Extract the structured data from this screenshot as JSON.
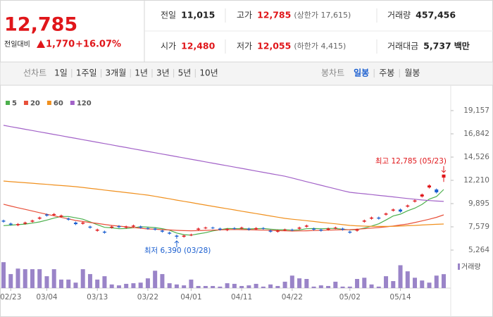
{
  "quote": {
    "price": "12,785",
    "change_label": "전일대비",
    "change": "1,770",
    "rate": "+16.07%"
  },
  "summary": [
    {
      "label": "전일",
      "value": "11,015"
    },
    {
      "label": "고가",
      "value": "12,785",
      "note": "(상한가 17,615)"
    },
    {
      "label": "거래량",
      "value": "457,456"
    },
    {
      "label": "시가",
      "value": "12,480"
    },
    {
      "label": "저가",
      "value": "12,055",
      "note": "(하한가 4,415)"
    },
    {
      "label": "거래대금",
      "value": "5,737",
      "unit": "백만"
    }
  ],
  "line_tabs": {
    "label": "선차트",
    "items": [
      "1일",
      "1주일",
      "3개월",
      "1년",
      "3년",
      "5년",
      "10년"
    ]
  },
  "candle_tabs": {
    "label": "봉차트",
    "items": [
      "일봉",
      "주봉",
      "월봉"
    ],
    "selected": 0
  },
  "chart_data": {
    "type": "candlestick",
    "categories": [
      null,
      "02/23",
      null,
      null,
      null,
      null,
      "03/04",
      null,
      null,
      null,
      null,
      null,
      null,
      "03/13",
      null,
      null,
      null,
      null,
      null,
      null,
      "03/22",
      null,
      null,
      null,
      null,
      null,
      "04/01",
      null,
      null,
      null,
      null,
      null,
      null,
      "04/11",
      null,
      null,
      null,
      null,
      null,
      null,
      "04/22",
      null,
      null,
      null,
      null,
      null,
      null,
      null,
      "05/02",
      null,
      null,
      null,
      null,
      null,
      null,
      "05/14",
      null,
      null,
      null,
      null,
      null,
      null
    ],
    "open": [
      8200,
      7900,
      7750,
      7900,
      8100,
      8400,
      8800,
      8750,
      8600,
      8400,
      8000,
      7900,
      7600,
      7200,
      7100,
      7500,
      7650,
      7500,
      7600,
      7600,
      7450,
      7400,
      7200,
      7000,
      6700,
      6600,
      6750,
      7300,
      7450,
      7500,
      7400,
      7250,
      7450,
      7450,
      7400,
      7350,
      7450,
      7200,
      7100,
      7250,
      7300,
      7400,
      7600,
      7400,
      7300,
      7300,
      7450,
      7400,
      7100,
      7200,
      8100,
      8400,
      8500,
      8800,
      9200,
      9300,
      9600,
      10100,
      10600,
      11500,
      11300,
      12480
    ],
    "high": [
      8300,
      8000,
      7950,
      8100,
      8300,
      8600,
      8900,
      8950,
      8800,
      8500,
      8100,
      8100,
      7700,
      7400,
      7200,
      7700,
      7750,
      7700,
      7800,
      7700,
      7550,
      7500,
      7300,
      7100,
      6800,
      6800,
      6900,
      7500,
      7600,
      7600,
      7500,
      7450,
      7550,
      7600,
      7500,
      7550,
      7550,
      7300,
      7300,
      7400,
      7400,
      7600,
      7800,
      7500,
      7400,
      7500,
      7600,
      7500,
      7200,
      7400,
      8300,
      8600,
      8600,
      9000,
      9400,
      9400,
      9800,
      10300,
      10900,
      11800,
      11400,
      12785
    ],
    "low": [
      8000,
      7700,
      7650,
      7800,
      8000,
      8300,
      8600,
      8650,
      8500,
      8200,
      7750,
      7800,
      7400,
      7100,
      6900,
      7400,
      7450,
      7400,
      7500,
      7400,
      7300,
      7200,
      7000,
      6800,
      6390,
      6500,
      6650,
      7200,
      7350,
      7350,
      7200,
      7150,
      7300,
      7350,
      7200,
      7250,
      7300,
      7000,
      7000,
      7150,
      7150,
      7300,
      7500,
      7200,
      7100,
      7200,
      7350,
      7200,
      6900,
      7100,
      8000,
      8300,
      8300,
      8700,
      9100,
      9000,
      9500,
      10000,
      10500,
      11400,
      10900,
      12055
    ],
    "close": [
      8100,
      7800,
      7850,
      8000,
      8200,
      8500,
      8700,
      8850,
      8700,
      8300,
      7850,
      8000,
      7500,
      7300,
      7000,
      7600,
      7550,
      7600,
      7700,
      7500,
      7400,
      7300,
      7100,
      6900,
      6600,
      6700,
      6800,
      7400,
      7500,
      7450,
      7300,
      7350,
      7400,
      7500,
      7300,
      7450,
      7400,
      7100,
      7200,
      7300,
      7250,
      7500,
      7700,
      7300,
      7200,
      7400,
      7500,
      7300,
      7000,
      7300,
      8200,
      8500,
      8400,
      8900,
      9300,
      9100,
      9700,
      10200,
      10800,
      11700,
      11015,
      12785
    ],
    "up_color": "#e0161a",
    "down_color": "#1b5fd0",
    "series": [
      {
        "name": "5",
        "color": "#4cb04c",
        "values": [
          7700,
          7750,
          7800,
          7850,
          7950,
          8070,
          8250,
          8450,
          8610,
          8610,
          8480,
          8340,
          8070,
          7790,
          7530,
          7480,
          7390,
          7410,
          7490,
          7590,
          7550,
          7500,
          7400,
          7240,
          6960,
          6800,
          6750,
          6880,
          7000,
          7170,
          7290,
          7420,
          7400,
          7400,
          7370,
          7400,
          7410,
          7350,
          7290,
          7290,
          7250,
          7270,
          7390,
          7410,
          7390,
          7420,
          7420,
          7340,
          7280,
          7300,
          7460,
          7660,
          7880,
          8260,
          8660,
          8840,
          9180,
          9440,
          9820,
          10340,
          10600,
          11300
        ]
      },
      {
        "name": "20",
        "color": "#e8503a",
        "values": [
          9830,
          9650,
          9480,
          9320,
          9150,
          8990,
          8830,
          8680,
          8520,
          8370,
          8210,
          8110,
          8010,
          7920,
          7820,
          7720,
          7650,
          7580,
          7510,
          7440,
          7370,
          7340,
          7300,
          7270,
          7230,
          7200,
          7190,
          7200,
          7230,
          7250,
          7280,
          7300,
          7310,
          7300,
          7290,
          7270,
          7250,
          7230,
          7200,
          7180,
          7160,
          7170,
          7190,
          7210,
          7230,
          7250,
          7270,
          7290,
          7300,
          7340,
          7390,
          7450,
          7510,
          7580,
          7660,
          7760,
          7860,
          8010,
          8170,
          8340,
          8530,
          8770
        ]
      },
      {
        "name": "60",
        "color": "#f0901e",
        "values": [
          12140,
          12080,
          12030,
          11970,
          11920,
          11860,
          11810,
          11750,
          11690,
          11640,
          11580,
          11500,
          11410,
          11330,
          11240,
          11160,
          11080,
          10990,
          10910,
          10820,
          10740,
          10620,
          10490,
          10370,
          10240,
          10120,
          10000,
          9870,
          9750,
          9620,
          9500,
          9380,
          9260,
          9140,
          9020,
          8900,
          8780,
          8660,
          8540,
          8420,
          8340,
          8270,
          8190,
          8110,
          8030,
          7950,
          7880,
          7800,
          7720,
          7680,
          7650,
          7630,
          7620,
          7620,
          7630,
          7660,
          7690,
          7720,
          7760,
          7800,
          7830,
          7860
        ]
      },
      {
        "name": "120",
        "color": "#a262c8",
        "values": [
          17690,
          17560,
          17430,
          17300,
          17170,
          17040,
          16910,
          16780,
          16650,
          16520,
          16390,
          16260,
          16130,
          16000,
          15870,
          15740,
          15610,
          15480,
          15350,
          15220,
          15090,
          14960,
          14830,
          14700,
          14570,
          14440,
          14310,
          14180,
          14050,
          13920,
          13790,
          13660,
          13530,
          13400,
          13270,
          13140,
          13010,
          12880,
          12750,
          12620,
          12440,
          12260,
          12080,
          11900,
          11720,
          11540,
          11360,
          11180,
          11020,
          10940,
          10870,
          10790,
          10710,
          10640,
          10560,
          10480,
          10400,
          10330,
          10250,
          10200,
          10150,
          10110
        ]
      }
    ],
    "volume_name": "거래량",
    "volume_color": "#9a84c8",
    "volume": [
      850000,
      460000,
      640000,
      620000,
      620000,
      620000,
      390000,
      620000,
      280000,
      280000,
      180000,
      620000,
      460000,
      280000,
      390000,
      120000,
      90000,
      140000,
      160000,
      180000,
      320000,
      570000,
      460000,
      160000,
      120000,
      90000,
      280000,
      70000,
      70000,
      70000,
      50000,
      160000,
      140000,
      70000,
      90000,
      140000,
      50000,
      120000,
      70000,
      210000,
      410000,
      320000,
      300000,
      50000,
      90000,
      70000,
      210000,
      50000,
      50000,
      300000,
      340000,
      120000,
      50000,
      390000,
      230000,
      750000,
      550000,
      340000,
      250000,
      180000,
      410000,
      457456
    ],
    "volume_ylim": [
      0,
      900000
    ],
    "ylim": [
      5264,
      19157
    ],
    "yticks": [
      {
        "value": 19157,
        "label": "19,157"
      },
      {
        "value": 16842,
        "label": "16,842"
      },
      {
        "value": 14526,
        "label": "14,526"
      },
      {
        "value": 12210,
        "label": "12,210"
      },
      {
        "value": 9895,
        "label": "9,895"
      },
      {
        "value": 7579,
        "label": "7,579"
      },
      {
        "value": 5264,
        "label": "5,264"
      }
    ],
    "grid": false,
    "annotations": [
      {
        "text": "최고 12,785 (05/23)",
        "index": 61,
        "value": 12785,
        "color": "#e0161a"
      },
      {
        "text": "최저 6,390 (03/28)",
        "index": 24,
        "value": 6390,
        "color": "#1b5fd0"
      }
    ]
  }
}
